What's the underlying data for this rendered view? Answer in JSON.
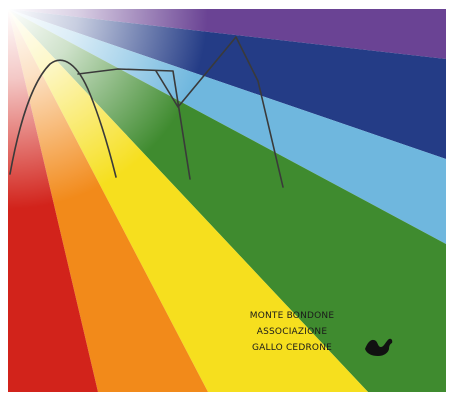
{
  "poster": {
    "caption_lines": [
      "MONTE BONDONE",
      "ASSOCIAZIONE",
      "GALLO CEDRONE"
    ]
  },
  "colors": {
    "red": "#d2231b",
    "orange": "#f28a1a",
    "yellow": "#f6df1e",
    "green": "#3f8b2f",
    "light_blue": "#6fb7de",
    "navy": "#243c86",
    "purple": "#6a4394",
    "mountain_stroke": "#3a3a3a"
  }
}
